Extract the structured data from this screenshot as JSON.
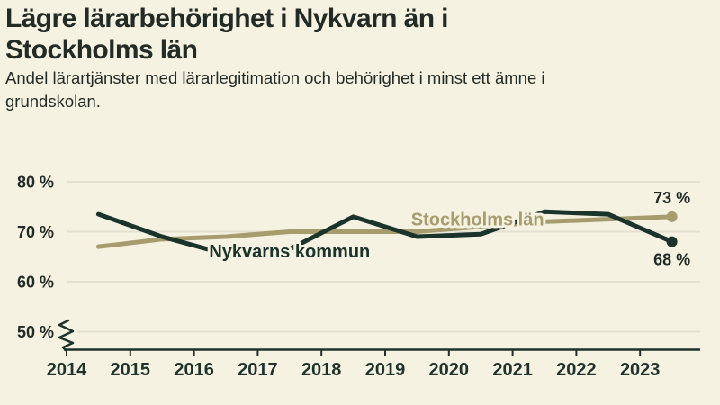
{
  "header": {
    "title": "Lägre lärarbehörighet i Nykvarn än i Stockholms län",
    "title_lines": [
      "Lägre lärarbehörighet i Nykvarn än i",
      "Stockholms län"
    ],
    "subtitle": "Andel lärartjänster med lärarlegitimation och behörighet i minst ett ämne i grundskolan.",
    "subtitle_lines": [
      "Andel lärartjänster med lärarlegitimation och behörighet i minst ett ämne i",
      "grundskolan."
    ]
  },
  "colors": {
    "background": "#f5f2e2",
    "dark_series": "#1a332b",
    "olive_series": "#a69c6e",
    "gridline": "#e3e0d2",
    "axis": "#1d332c",
    "text": "#232b27"
  },
  "chart_data": {
    "type": "line",
    "title": "Lägre lärarbehörighet i Nykvarn än i Stockholms län",
    "subtitle": "Andel lärartjänster med lärarlegitimation och behörighet i minst ett ämne i grundskolan.",
    "x": [
      2014.5,
      2015.5,
      2016.5,
      2017.5,
      2018.5,
      2019.5,
      2020.5,
      2021.5,
      2022.5,
      2023.5
    ],
    "x_note": "points plotted midway between year ticks (school years)",
    "xticks": [
      2014,
      2015,
      2016,
      2017,
      2018,
      2019,
      2020,
      2021,
      2022,
      2023
    ],
    "yticks": [
      {
        "value": 80,
        "label": "80 %"
      },
      {
        "value": 70,
        "label": "70 %"
      },
      {
        "value": 60,
        "label": "60 %"
      },
      {
        "value": 50,
        "label": "50 %"
      }
    ],
    "ylim": [
      50,
      80
    ],
    "unit": "%",
    "axis_break": true,
    "grid": "horizontal",
    "legend": "inline-labels",
    "series": [
      {
        "name": "Stockholms län",
        "color_key": "olive_series",
        "values": [
          67,
          68.5,
          69,
          70,
          70,
          70,
          71,
          72,
          72.5,
          73
        ],
        "end_label": "73 %",
        "end_dot": true,
        "name_label_pos": {
          "x": 2020.45,
          "y": 71.3
        },
        "end_label_pos": {
          "x": 2023.5,
          "y": 75.7
        }
      },
      {
        "name": "Nykvarns kommun",
        "color_key": "dark_series",
        "values": [
          73.5,
          69,
          65.5,
          66.5,
          73,
          69,
          69.5,
          74,
          73.5,
          68
        ],
        "end_label": "68 %",
        "end_dot": true,
        "name_label_pos": {
          "x": 2017.5,
          "y": 64.9
        },
        "end_label_pos": {
          "x": 2023.5,
          "y": 63.3
        }
      }
    ]
  }
}
